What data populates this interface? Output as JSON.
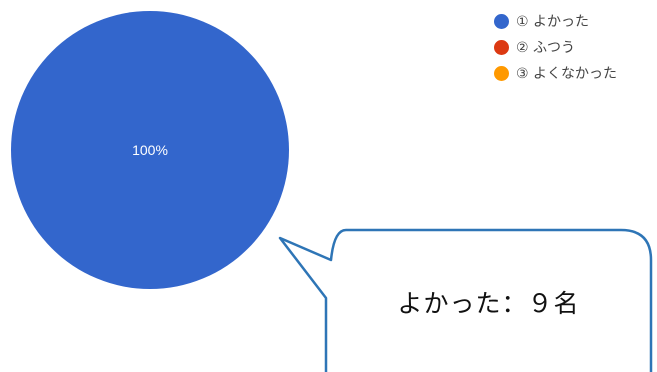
{
  "chart_data": {
    "type": "pie",
    "categories": [
      "① よかった",
      "② ふつう",
      "③ よくなかった"
    ],
    "values": [
      100,
      0,
      0
    ],
    "colors": [
      "#3366cc",
      "#dc3912",
      "#ff9900"
    ],
    "slice_labels": [
      "100%"
    ],
    "legend_position": "top-right"
  },
  "callout": {
    "text": "よかった：９名"
  }
}
